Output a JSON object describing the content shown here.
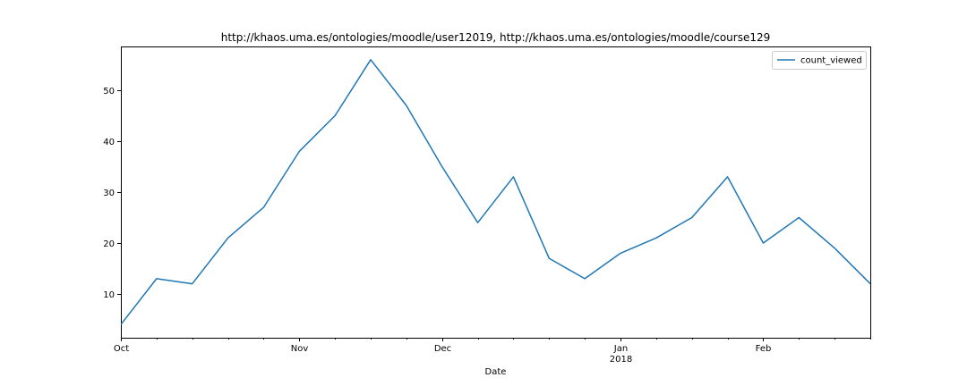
{
  "chart_data": {
    "type": "line",
    "title": "http://khaos.uma.es/ontologies/moodle/user12019, http://khaos.uma.es/ontologies/moodle/course129",
    "xlabel": "Date",
    "ylabel": "",
    "x_start": "2017-10-01",
    "x": [
      "2017-10-01",
      "2017-10-08",
      "2017-10-15",
      "2017-10-22",
      "2017-10-29",
      "2017-11-05",
      "2017-11-12",
      "2017-11-19",
      "2017-11-26",
      "2017-12-03",
      "2017-12-10",
      "2017-12-17",
      "2017-12-24",
      "2017-12-31",
      "2018-01-07",
      "2018-01-14",
      "2018-01-21",
      "2018-01-28",
      "2018-02-04",
      "2018-02-11",
      "2018-02-18",
      "2018-02-25"
    ],
    "series": [
      {
        "name": "count_viewed",
        "color": "#1f77b4",
        "values": [
          4,
          13,
          12,
          21,
          27,
          38,
          45,
          56,
          47,
          35,
          24,
          33,
          17,
          13,
          18,
          21,
          25,
          33,
          20,
          25,
          19,
          12
        ]
      }
    ],
    "xlim": [
      "2017-10-01",
      "2018-02-25"
    ],
    "ylim": [
      1.4,
      58.6
    ],
    "yticks": [
      10,
      20,
      30,
      40,
      50
    ],
    "xticks_major": [
      {
        "date": "2017-10-01",
        "label": "Oct",
        "sublabel": ""
      },
      {
        "date": "2017-11-05",
        "label": "Nov",
        "sublabel": ""
      },
      {
        "date": "2017-12-03",
        "label": "Dec",
        "sublabel": ""
      },
      {
        "date": "2018-01-07",
        "label": "Jan",
        "sublabel": "2018"
      },
      {
        "date": "2018-02-04",
        "label": "Feb",
        "sublabel": ""
      }
    ],
    "xticks_minor": [
      "2017-10-08",
      "2017-10-15",
      "2017-10-22",
      "2017-10-29",
      "2017-11-12",
      "2017-11-19",
      "2017-11-26",
      "2017-12-10",
      "2017-12-17",
      "2017-12-24",
      "2017-12-31",
      "2018-01-14",
      "2018-01-21",
      "2018-01-28",
      "2018-02-11",
      "2018-02-18",
      "2018-02-25"
    ],
    "grid": false,
    "legend_position": "top-right"
  }
}
